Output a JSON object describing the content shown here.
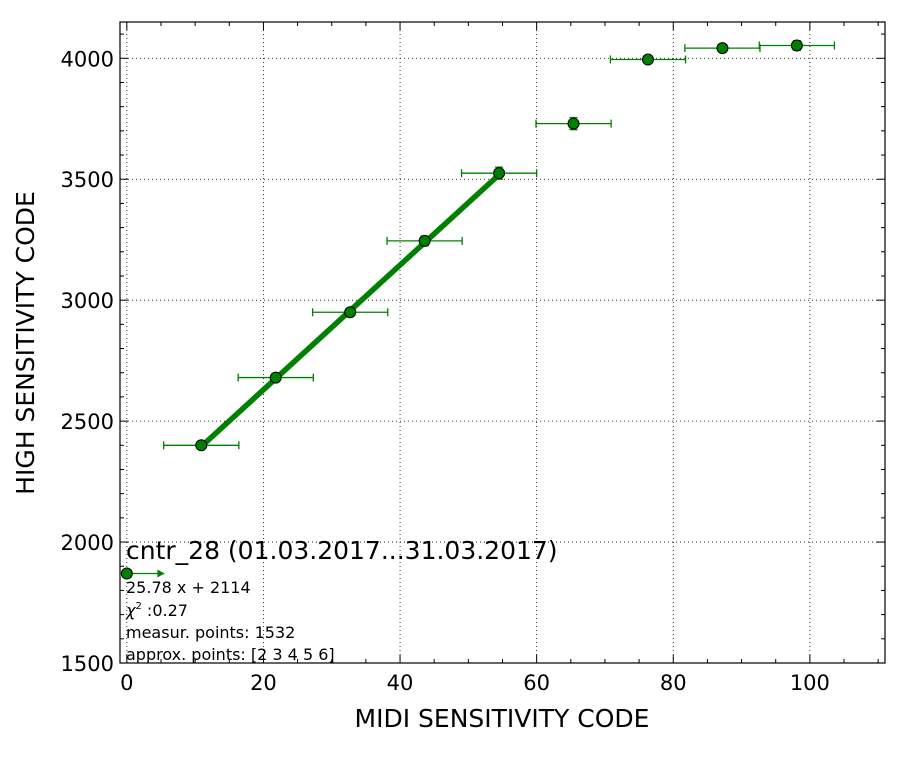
{
  "chart_data": {
    "type": "scatter",
    "xlabel": "MIDI SENSITIVITY CODE",
    "ylabel": "HIGH SENSITIVITY CODE",
    "xlim": [
      -1,
      111
    ],
    "ylim": [
      1500,
      4150
    ],
    "x_ticks": [
      0,
      20,
      40,
      60,
      80,
      100
    ],
    "y_ticks": [
      1500,
      2000,
      2500,
      3000,
      3500,
      4000
    ],
    "grid": true,
    "colors": {
      "series": "#008000",
      "marker_edge": "#000000"
    },
    "points": [
      {
        "x": 0,
        "y": 1870,
        "xerr": 5.5,
        "yerr": 0,
        "right_only": true
      },
      {
        "x": 10.9,
        "y": 2400,
        "xerr": 5.5,
        "yerr": 10
      },
      {
        "x": 21.8,
        "y": 2680,
        "xerr": 5.5,
        "yerr": 10
      },
      {
        "x": 32.7,
        "y": 2950,
        "xerr": 5.5,
        "yerr": 15
      },
      {
        "x": 43.6,
        "y": 3245,
        "xerr": 5.5,
        "yerr": 20
      },
      {
        "x": 54.5,
        "y": 3525,
        "xerr": 5.5,
        "yerr": 25
      },
      {
        "x": 65.4,
        "y": 3730,
        "xerr": 5.5,
        "yerr": 25
      },
      {
        "x": 76.3,
        "y": 3995,
        "xerr": 5.5,
        "yerr": 10
      },
      {
        "x": 87.2,
        "y": 4042,
        "xerr": 5.5,
        "yerr": 10
      },
      {
        "x": 98.1,
        "y": 4053,
        "xerr": 5.5,
        "yerr": 20
      }
    ],
    "fit": {
      "slope": 25.78,
      "intercept": 2114,
      "x_range": [
        10.9,
        54.5
      ]
    },
    "annotation": {
      "title": "cntr_28 (01.03.2017...31.03.2017)",
      "equation": "25.78 x + 2114",
      "chi_symbol": "χ",
      "chi_exponent": "2",
      "chi_value": " :0.27",
      "measur_points": "measur. points: 1532",
      "approx_points": "approx. points: [2 3 4 5 6]"
    }
  }
}
